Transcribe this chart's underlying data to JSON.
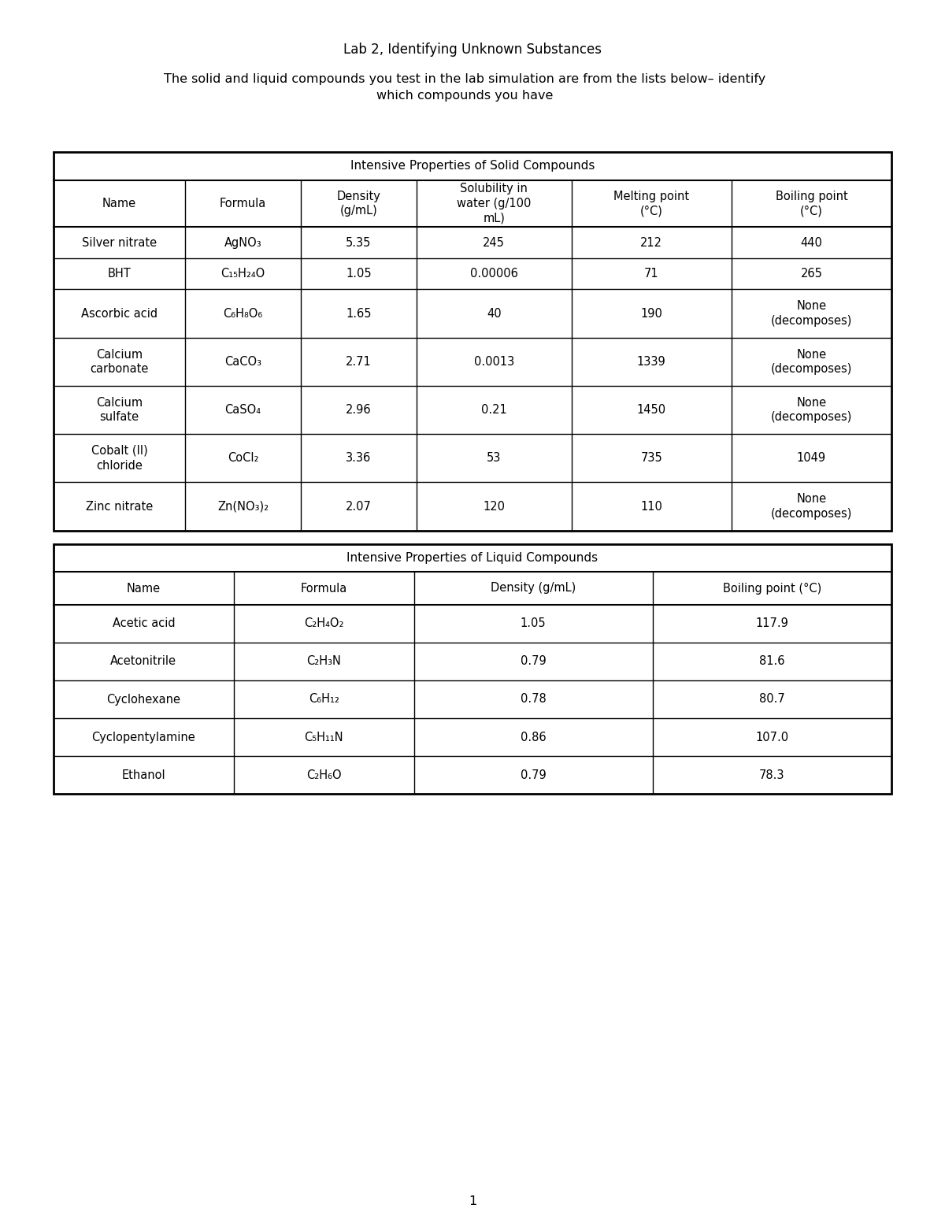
{
  "title": "Lab 2, Identifying Unknown Substances",
  "subtitle_line1": "The solid and liquid compounds you test in the lab simulation are from the lists below– identify",
  "subtitle_line2": "which compounds you have",
  "table1_title": "Intensive Properties of Solid Compounds",
  "table1_headers": [
    "Name",
    "Formula",
    "Density\n(g/mL)",
    "Solubility in\nwater (g/100\nmL)",
    "Melting point\n(°C)",
    "Boiling point\n(°C)"
  ],
  "table1_data": [
    [
      "Silver nitrate",
      "AgNO₃",
      "5.35",
      "245",
      "212",
      "440"
    ],
    [
      "BHT",
      "C₁₅H₂₄O",
      "1.05",
      "0.00006",
      "71",
      "265"
    ],
    [
      "Ascorbic acid",
      "C₆H₈O₆",
      "1.65",
      "40",
      "190",
      "None\n(decomposes)"
    ],
    [
      "Calcium\ncarbonate",
      "CaCO₃",
      "2.71",
      "0.0013",
      "1339",
      "None\n(decomposes)"
    ],
    [
      "Calcium\nsulfate",
      "CaSO₄",
      "2.96",
      "0.21",
      "1450",
      "None\n(decomposes)"
    ],
    [
      "Cobalt (II)\nchloride",
      "CoCl₂",
      "3.36",
      "53",
      "735",
      "1049"
    ],
    [
      "Zinc nitrate",
      "Zn(NO₃)₂",
      "2.07",
      "120",
      "110",
      "None\n(decomposes)"
    ]
  ],
  "table2_title": "Intensive Properties of Liquid Compounds",
  "table2_headers": [
    "Name",
    "Formula",
    "Density (g/mL)",
    "Boiling point (°C)"
  ],
  "table2_data": [
    [
      "Acetic acid",
      "C₂H₄O₂",
      "1.05",
      "117.9"
    ],
    [
      "Acetonitrile",
      "C₂H₃N",
      "0.79",
      "81.6"
    ],
    [
      "Cyclohexane",
      "C₆H₁₂",
      "0.78",
      "80.7"
    ],
    [
      "Cyclopentylamine",
      "C₅H₁₁N",
      "0.86",
      "107.0"
    ],
    [
      "Ethanol",
      "C₂H₆O",
      "0.79",
      "78.3"
    ]
  ],
  "page_number": "1",
  "bg_color": "#ffffff",
  "border_color": "#000000",
  "text_color": "#000000",
  "font_size": 11.5,
  "title_font_size": 12,
  "header_font_size": 11
}
